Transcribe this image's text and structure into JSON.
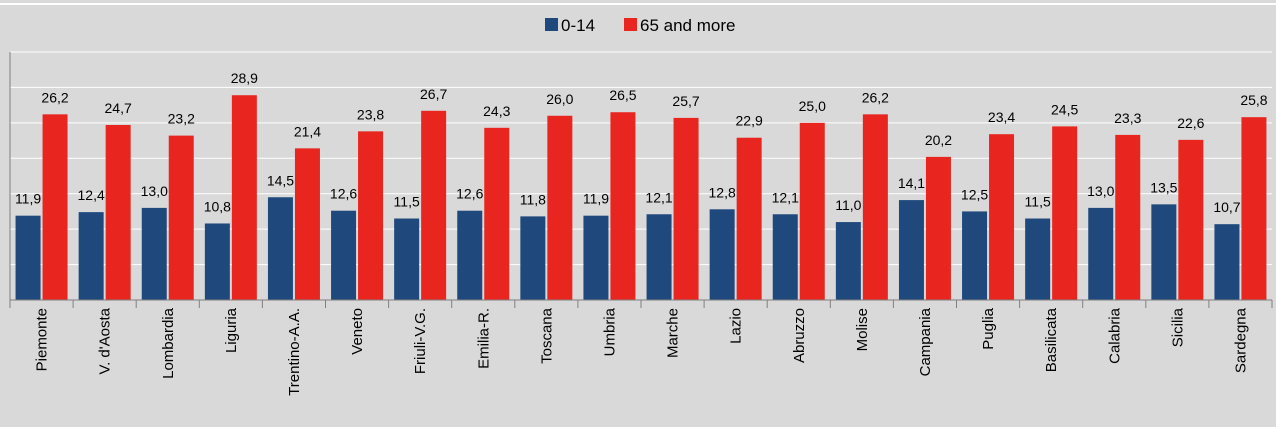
{
  "chart_data": {
    "type": "bar",
    "title": "",
    "xlabel": "",
    "ylabel": "",
    "ylim": [
      0,
      35
    ],
    "grid": true,
    "legend_position": "top-center",
    "categories": [
      "Piemonte",
      "V. d'Aosta",
      "Lombardia",
      "Liguria",
      "Trentino-A.A.",
      "Veneto",
      "Friuli-V.G.",
      "Emilia-R.",
      "Toscana",
      "Umbria",
      "Marche",
      "Lazio",
      "Abruzzo",
      "Molise",
      "Campania",
      "Puglia",
      "Basilicata",
      "Calabria",
      "Sicilia",
      "Sardegna"
    ],
    "series": [
      {
        "name": "0-14",
        "color": "#1f497d",
        "values": [
          11.9,
          12.4,
          13.0,
          10.8,
          14.5,
          12.6,
          11.5,
          12.6,
          11.8,
          11.9,
          12.1,
          12.8,
          12.1,
          11.0,
          14.1,
          12.5,
          11.5,
          13.0,
          13.5,
          10.7
        ],
        "labels": [
          "11,9",
          "12,4",
          "13,0",
          "10,8",
          "14,5",
          "12,6",
          "11,5",
          "12,6",
          "11,8",
          "11,9",
          "12,1",
          "12,8",
          "12,1",
          "11,0",
          "14,1",
          "12,5",
          "11,5",
          "13,0",
          "13,5",
          "10,7"
        ]
      },
      {
        "name": "65 and more",
        "color": "#e8251e",
        "values": [
          26.2,
          24.7,
          23.2,
          28.9,
          21.4,
          23.8,
          26.7,
          24.3,
          26.0,
          26.5,
          25.7,
          22.9,
          25.0,
          26.2,
          20.2,
          23.4,
          24.5,
          23.3,
          22.6,
          25.8
        ],
        "labels": [
          "26,2",
          "24,7",
          "23,2",
          "28,9",
          "21,4",
          "23,8",
          "26,7",
          "24,3",
          "26,0",
          "26,5",
          "25,7",
          "22,9",
          "25,0",
          "26,2",
          "20,2",
          "23,4",
          "24,5",
          "23,3",
          "22,6",
          "25,8"
        ]
      }
    ]
  }
}
